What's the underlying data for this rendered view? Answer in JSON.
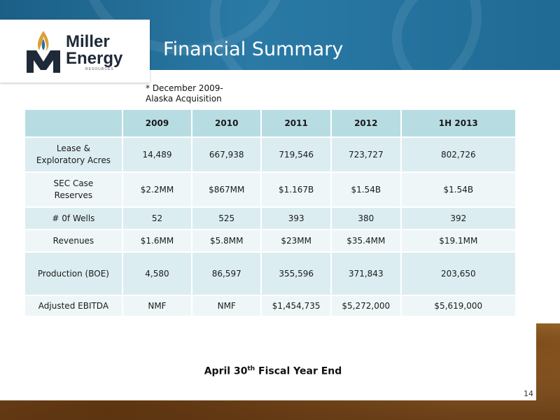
{
  "slide": {
    "title": "Financial Summary",
    "logo": {
      "line1": "Miller",
      "line2": "Energy",
      "sub": "RESOURCES"
    },
    "note": {
      "line1": "* December 2009-",
      "line2": "Alaska Acquisition"
    },
    "footer": {
      "pre": "April 30",
      "sup": "th",
      "post": " Fiscal Year End"
    },
    "page_number": "14"
  },
  "table": {
    "headers": [
      "",
      "2009",
      "2010",
      "2011",
      "2012",
      "1H 2013"
    ],
    "rows": [
      {
        "label": "Lease  &\nExploratory Acres",
        "values": [
          "14,489",
          "667,938",
          "719,546",
          "723,727",
          "802,726"
        ]
      },
      {
        "label": "SEC Case\nReserves",
        "values": [
          "$2.2MM",
          "$867MM",
          "$1.167B",
          "$1.54B",
          "$1.54B"
        ]
      },
      {
        "label": "# 0f Wells",
        "values": [
          "52",
          "525",
          "393",
          "380",
          "392"
        ]
      },
      {
        "label": "Revenues",
        "values": [
          "$1.6MM",
          "$5.8MM",
          "$23MM",
          "$35.4MM",
          "$19.1MM"
        ]
      },
      {
        "label": "Production (BOE)",
        "values": [
          "4,580",
          "86,597",
          "355,596",
          "371,843",
          "203,650"
        ]
      },
      {
        "label": "Adjusted EBITDA",
        "values": [
          "NMF",
          "NMF",
          "$1,454,735",
          "$5,272,000",
          "$5,619,000"
        ]
      }
    ]
  },
  "colors": {
    "header_blue": "#1f6a95",
    "table_header": "#b7dde3",
    "row_light": "#dcedf1",
    "row_pale": "#eef6f8",
    "logo_flame": "#d9a03a"
  }
}
